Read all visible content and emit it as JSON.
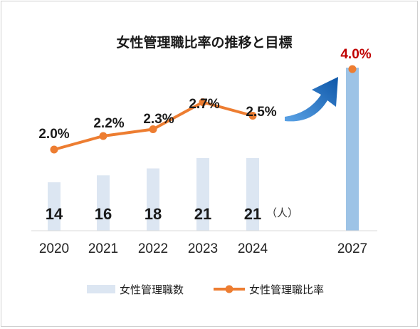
{
  "chart_data": {
    "type": "bar",
    "title": "女性管理職比率の推移と目標",
    "categories": [
      "2020",
      "2021",
      "2022",
      "2023",
      "2024",
      "2027"
    ],
    "series": [
      {
        "name": "女性管理職数",
        "type": "bar",
        "values": [
          14,
          16,
          18,
          21,
          21,
          null
        ],
        "value_labels": [
          "14",
          "16",
          "18",
          "21",
          "21",
          ""
        ],
        "unit_label": "（人）",
        "color": "#dce6f2"
      },
      {
        "name": "女性管理職比率",
        "type": "line",
        "values": [
          2.0,
          2.2,
          2.3,
          2.7,
          2.5,
          4.0
        ],
        "value_labels": [
          "2.0%",
          "2.2%",
          "2.3%",
          "2.7%",
          "2.5%",
          "4.0%"
        ],
        "color": "#ed7d31",
        "target_color": "#c00000",
        "target_bar_color": "#9dc3e6"
      }
    ],
    "arrow_color": "#1565b8",
    "legend_position": "bottom",
    "grid": false
  }
}
